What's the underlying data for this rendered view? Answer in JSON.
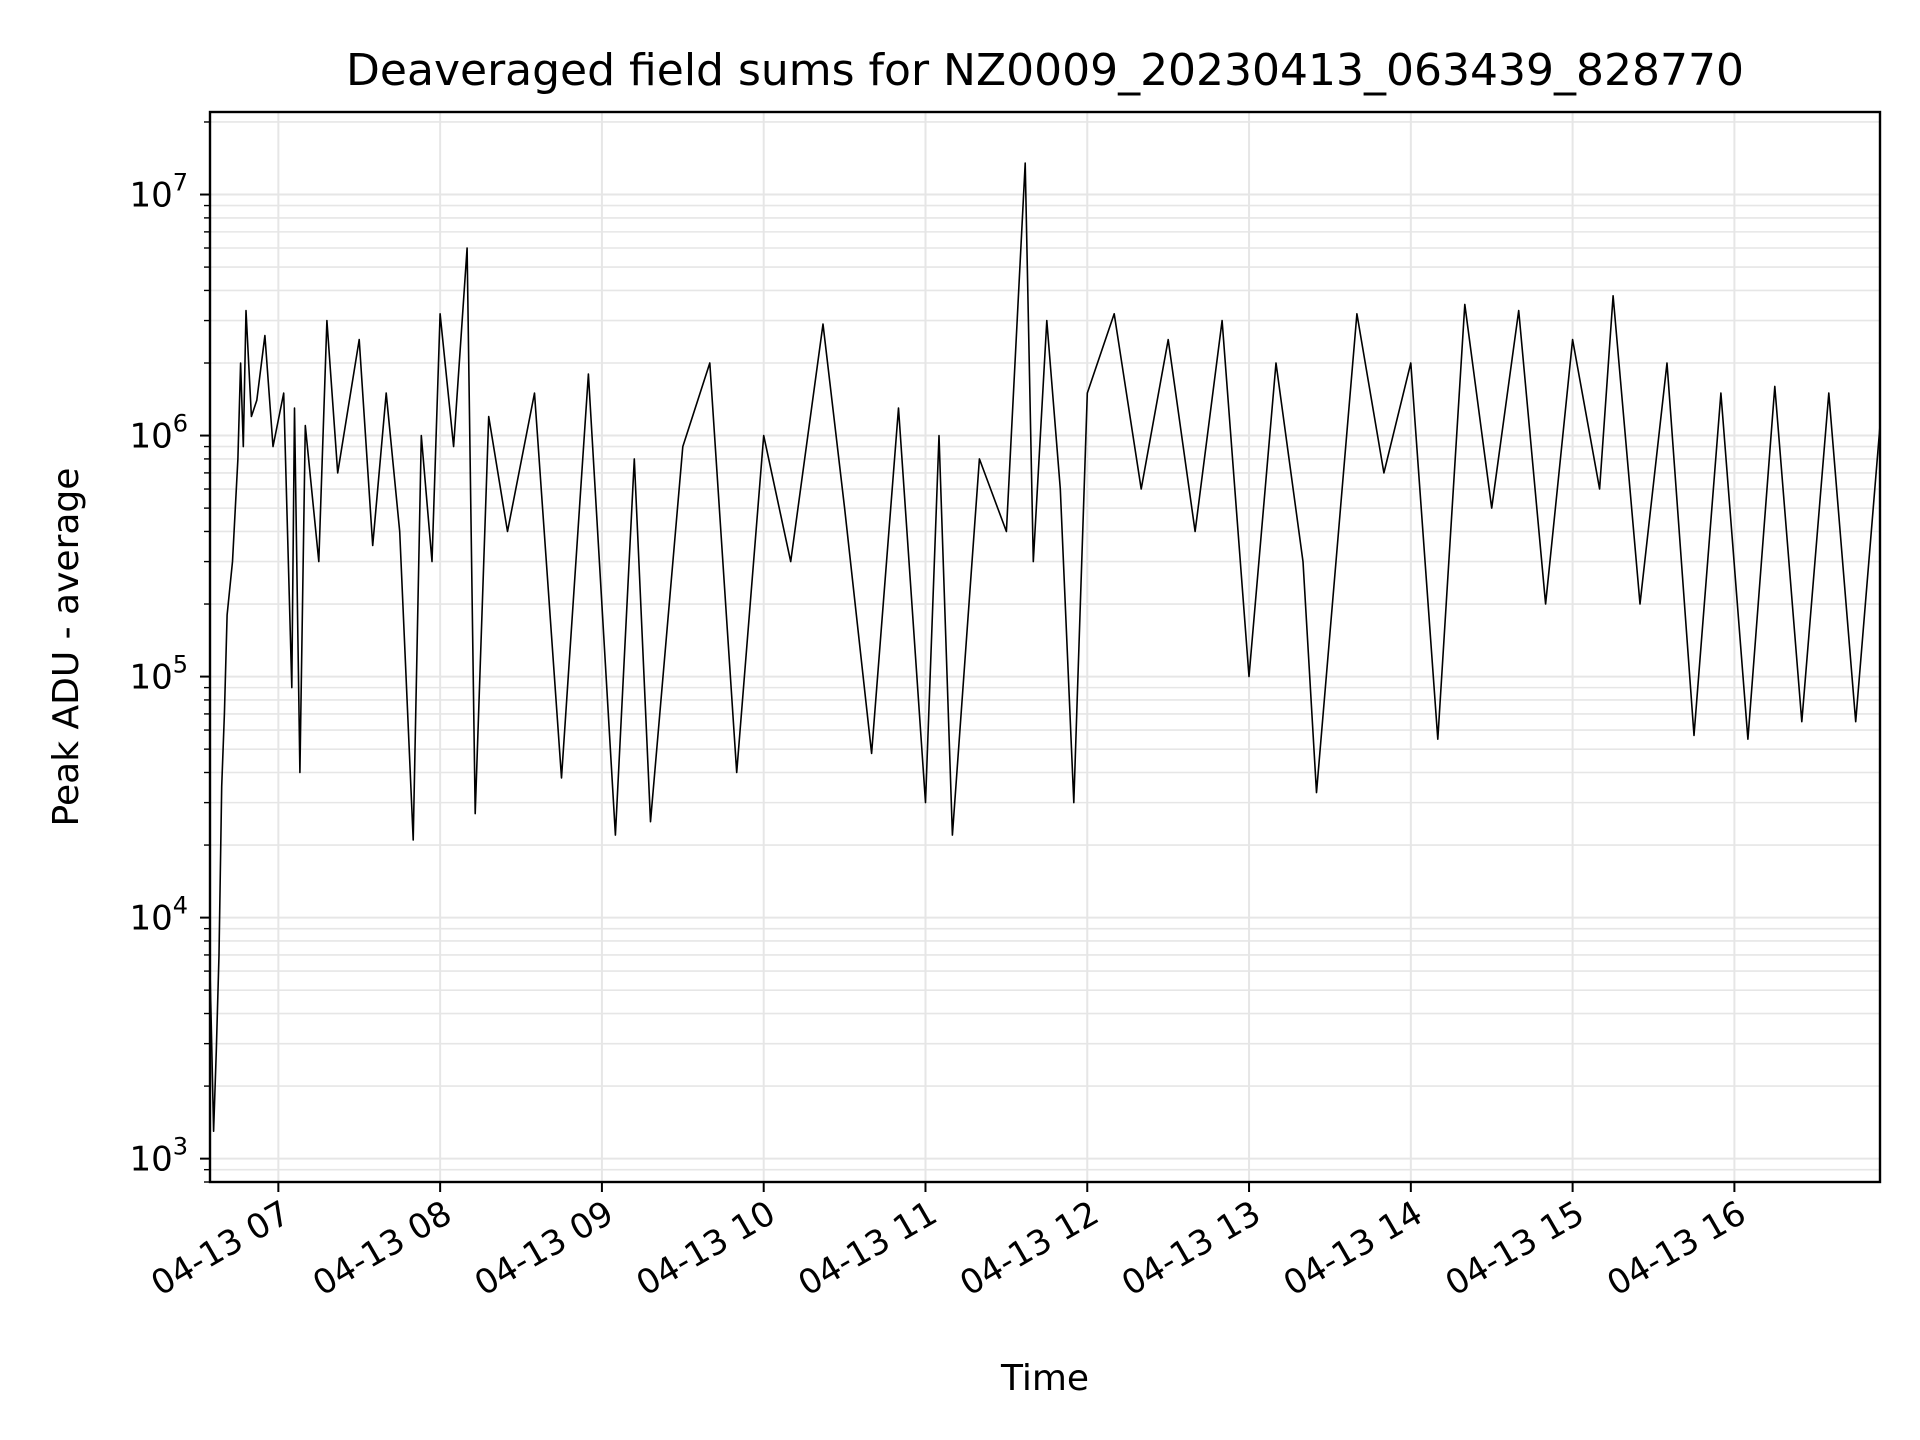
{
  "chart_data": {
    "type": "line",
    "title": "Deaveraged field sums for NZ0009_20230413_063439_828770",
    "xlabel": "Time",
    "ylabel": "Peak ADU - average",
    "x_start": "2023-04-13T06:34:39",
    "x_end": "2023-04-13T16:54:00",
    "xlim": [
      "2023-04-13T06:34:39",
      "2023-04-13T16:54:00"
    ],
    "ylim": [
      800,
      22000000
    ],
    "yscale": "log",
    "grid": true,
    "legend": "none",
    "line_color": "#000000",
    "grid_color": "#e6e6e6",
    "x_ticks": [
      {
        "value": "2023-04-13T07:00:00",
        "label": "04-13 07"
      },
      {
        "value": "2023-04-13T08:00:00",
        "label": "04-13 08"
      },
      {
        "value": "2023-04-13T09:00:00",
        "label": "04-13 09"
      },
      {
        "value": "2023-04-13T10:00:00",
        "label": "04-13 10"
      },
      {
        "value": "2023-04-13T11:00:00",
        "label": "04-13 11"
      },
      {
        "value": "2023-04-13T12:00:00",
        "label": "04-13 12"
      },
      {
        "value": "2023-04-13T13:00:00",
        "label": "04-13 13"
      },
      {
        "value": "2023-04-13T14:00:00",
        "label": "04-13 14"
      },
      {
        "value": "2023-04-13T15:00:00",
        "label": "04-13 15"
      },
      {
        "value": "2023-04-13T16:00:00",
        "label": "04-13 16"
      }
    ],
    "y_ticks": [
      {
        "value": 1000,
        "base": "10",
        "exp": "3"
      },
      {
        "value": 10000,
        "base": "10",
        "exp": "4"
      },
      {
        "value": 100000,
        "base": "10",
        "exp": "5"
      },
      {
        "value": 1000000,
        "base": "10",
        "exp": "6"
      },
      {
        "value": 10000000,
        "base": "10",
        "exp": "7"
      }
    ],
    "series": [
      {
        "points": [
          [
            "2023-04-13T06:34:39",
            6000
          ],
          [
            "2023-04-13T06:35:00",
            4200
          ],
          [
            "2023-04-13T06:36:00",
            1300
          ],
          [
            "2023-04-13T06:37:00",
            2800
          ],
          [
            "2023-04-13T06:38:00",
            7000
          ],
          [
            "2023-04-13T06:39:00",
            35000
          ],
          [
            "2023-04-13T06:40:00",
            70000
          ],
          [
            "2023-04-13T06:41:00",
            180000
          ],
          [
            "2023-04-13T06:43:00",
            300000
          ],
          [
            "2023-04-13T06:45:00",
            800000
          ],
          [
            "2023-04-13T06:46:00",
            2000000
          ],
          [
            "2023-04-13T06:47:00",
            900000
          ],
          [
            "2023-04-13T06:48:00",
            3300000
          ],
          [
            "2023-04-13T06:50:00",
            1200000
          ],
          [
            "2023-04-13T06:52:00",
            1400000
          ],
          [
            "2023-04-13T06:55:00",
            2600000
          ],
          [
            "2023-04-13T06:58:00",
            900000
          ],
          [
            "2023-04-13T07:02:00",
            1500000
          ],
          [
            "2023-04-13T07:05:00",
            90000
          ],
          [
            "2023-04-13T07:06:00",
            1300000
          ],
          [
            "2023-04-13T07:08:00",
            40000
          ],
          [
            "2023-04-13T07:10:00",
            1100000
          ],
          [
            "2023-04-13T07:15:00",
            300000
          ],
          [
            "2023-04-13T07:18:00",
            3000000
          ],
          [
            "2023-04-13T07:22:00",
            700000
          ],
          [
            "2023-04-13T07:30:00",
            2500000
          ],
          [
            "2023-04-13T07:35:00",
            350000
          ],
          [
            "2023-04-13T07:40:00",
            1500000
          ],
          [
            "2023-04-13T07:45:00",
            400000
          ],
          [
            "2023-04-13T07:50:00",
            21000
          ],
          [
            "2023-04-13T07:53:00",
            1000000
          ],
          [
            "2023-04-13T07:57:00",
            300000
          ],
          [
            "2023-04-13T08:00:00",
            3200000
          ],
          [
            "2023-04-13T08:05:00",
            900000
          ],
          [
            "2023-04-13T08:10:00",
            6000000
          ],
          [
            "2023-04-13T08:13:00",
            27000
          ],
          [
            "2023-04-13T08:18:00",
            1200000
          ],
          [
            "2023-04-13T08:25:00",
            400000
          ],
          [
            "2023-04-13T08:35:00",
            1500000
          ],
          [
            "2023-04-13T08:45:00",
            38000
          ],
          [
            "2023-04-13T08:55:00",
            1800000
          ],
          [
            "2023-04-13T09:05:00",
            22000
          ],
          [
            "2023-04-13T09:12:00",
            800000
          ],
          [
            "2023-04-13T09:18:00",
            25000
          ],
          [
            "2023-04-13T09:30:00",
            900000
          ],
          [
            "2023-04-13T09:40:00",
            2000000
          ],
          [
            "2023-04-13T09:50:00",
            40000
          ],
          [
            "2023-04-13T10:00:00",
            1000000
          ],
          [
            "2023-04-13T10:10:00",
            300000
          ],
          [
            "2023-04-13T10:22:00",
            2900000
          ],
          [
            "2023-04-13T10:30:00",
            500000
          ],
          [
            "2023-04-13T10:40:00",
            48000
          ],
          [
            "2023-04-13T10:50:00",
            1300000
          ],
          [
            "2023-04-13T11:00:00",
            30000
          ],
          [
            "2023-04-13T11:05:00",
            1000000
          ],
          [
            "2023-04-13T11:10:00",
            22000
          ],
          [
            "2023-04-13T11:20:00",
            800000
          ],
          [
            "2023-04-13T11:30:00",
            400000
          ],
          [
            "2023-04-13T11:37:00",
            13500000
          ],
          [
            "2023-04-13T11:40:00",
            300000
          ],
          [
            "2023-04-13T11:45:00",
            3000000
          ],
          [
            "2023-04-13T11:50:00",
            600000
          ],
          [
            "2023-04-13T11:55:00",
            30000
          ],
          [
            "2023-04-13T12:00:00",
            1500000
          ],
          [
            "2023-04-13T12:10:00",
            3200000
          ],
          [
            "2023-04-13T12:20:00",
            600000
          ],
          [
            "2023-04-13T12:30:00",
            2500000
          ],
          [
            "2023-04-13T12:40:00",
            400000
          ],
          [
            "2023-04-13T12:50:00",
            3000000
          ],
          [
            "2023-04-13T13:00:00",
            100000
          ],
          [
            "2023-04-13T13:10:00",
            2000000
          ],
          [
            "2023-04-13T13:20:00",
            300000
          ],
          [
            "2023-04-13T13:25:00",
            33000
          ],
          [
            "2023-04-13T13:40:00",
            3200000
          ],
          [
            "2023-04-13T13:50:00",
            700000
          ],
          [
            "2023-04-13T14:00:00",
            2000000
          ],
          [
            "2023-04-13T14:10:00",
            55000
          ],
          [
            "2023-04-13T14:20:00",
            3500000
          ],
          [
            "2023-04-13T14:30:00",
            500000
          ],
          [
            "2023-04-13T14:40:00",
            3300000
          ],
          [
            "2023-04-13T14:50:00",
            200000
          ],
          [
            "2023-04-13T15:00:00",
            2500000
          ],
          [
            "2023-04-13T15:10:00",
            600000
          ],
          [
            "2023-04-13T15:15:00",
            3800000
          ],
          [
            "2023-04-13T15:25:00",
            200000
          ],
          [
            "2023-04-13T15:35:00",
            2000000
          ],
          [
            "2023-04-13T15:45:00",
            57000
          ],
          [
            "2023-04-13T15:55:00",
            1500000
          ],
          [
            "2023-04-13T16:05:00",
            55000
          ],
          [
            "2023-04-13T16:15:00",
            1600000
          ],
          [
            "2023-04-13T16:25:00",
            65000
          ],
          [
            "2023-04-13T16:35:00",
            1500000
          ],
          [
            "2023-04-13T16:45:00",
            65000
          ],
          [
            "2023-04-13T16:54:00",
            1100000
          ]
        ]
      }
    ]
  }
}
